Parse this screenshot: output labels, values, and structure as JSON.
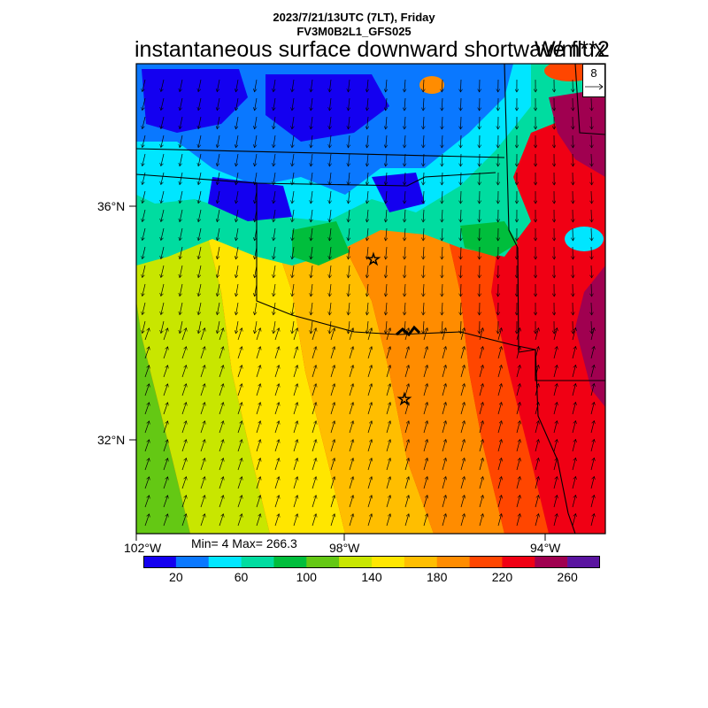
{
  "header": {
    "line1": "2023/7/21/13UTC (7LT), Friday",
    "line2": "FV3M0B2L1_GFS025",
    "title": "instantaneous surface downward shortwave flux",
    "units": "W/m**2"
  },
  "axes": {
    "lat_labels": [
      "36°N",
      "32°N"
    ],
    "lon_labels": [
      "102°W",
      "98°W",
      "94°W"
    ]
  },
  "stats": {
    "text": "Min= 4 Max= 266.3",
    "min": 4,
    "max": 266.3
  },
  "vector_ref": {
    "label": "8"
  },
  "colorbar": {
    "colors": [
      "#1400f0",
      "#0a78ff",
      "#00e6ff",
      "#00dca0",
      "#00be3c",
      "#64c814",
      "#c8e600",
      "#ffe600",
      "#ffbe00",
      "#ff8c00",
      "#ff4600",
      "#f00014",
      "#a00050",
      "#5a14a0"
    ],
    "tick_labels": [
      "20",
      "60",
      "100",
      "140",
      "180",
      "220",
      "260"
    ]
  }
}
